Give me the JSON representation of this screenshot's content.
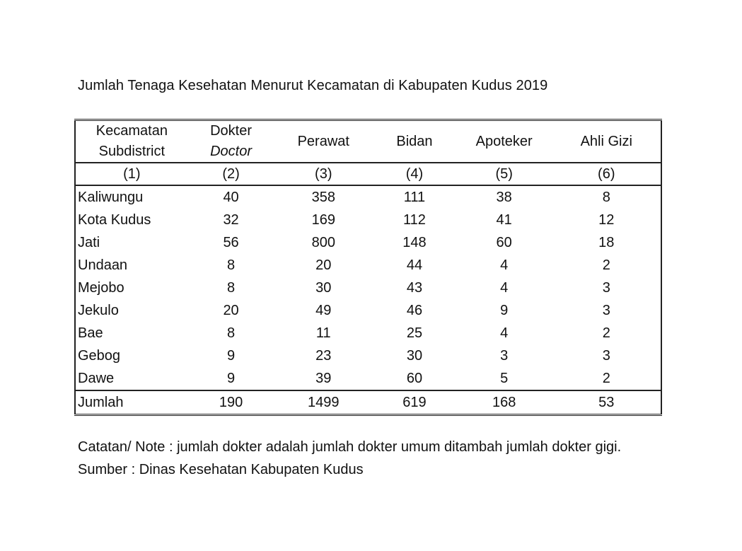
{
  "title": "Jumlah Tenaga Kesehatan Menurut Kecamatan di Kabupaten Kudus 2019",
  "table": {
    "headers": [
      {
        "line1": "Kecamatan",
        "line2": "Subdistrict"
      },
      {
        "line1": "Dokter",
        "line2": "Doctor"
      },
      {
        "line1": "Perawat"
      },
      {
        "line1": "Bidan"
      },
      {
        "line1": "Apoteker"
      },
      {
        "line1": "Ahli Gizi"
      }
    ],
    "column_numbers": [
      "(1)",
      "(2)",
      "(3)",
      "(4)",
      "(5)",
      "(6)"
    ],
    "rows": [
      [
        "Kaliwungu",
        "40",
        "358",
        "111",
        "38",
        "8"
      ],
      [
        "Kota Kudus",
        "32",
        "169",
        "112",
        "41",
        "12"
      ],
      [
        "Jati",
        "56",
        "800",
        "148",
        "60",
        "18"
      ],
      [
        "Undaan",
        "8",
        "20",
        "44",
        "4",
        "2"
      ],
      [
        "Mejobo",
        "8",
        "30",
        "43",
        "4",
        "3"
      ],
      [
        "Jekulo",
        "20",
        "49",
        "46",
        "9",
        "3"
      ],
      [
        "Bae",
        "8",
        "11",
        "25",
        "4",
        "2"
      ],
      [
        "Gebog",
        "9",
        "23",
        "30",
        "3",
        "3"
      ],
      [
        "Dawe",
        "9",
        "39",
        "60",
        "5",
        "2"
      ]
    ],
    "total": [
      "Jumlah",
      "190",
      "1499",
      "619",
      "168",
      "53"
    ]
  },
  "notes": {
    "note": "Catatan/ Note : jumlah dokter adalah jumlah dokter umum ditambah jumlah dokter gigi.",
    "source": "Sumber : Dinas Kesehatan Kabupaten Kudus"
  }
}
